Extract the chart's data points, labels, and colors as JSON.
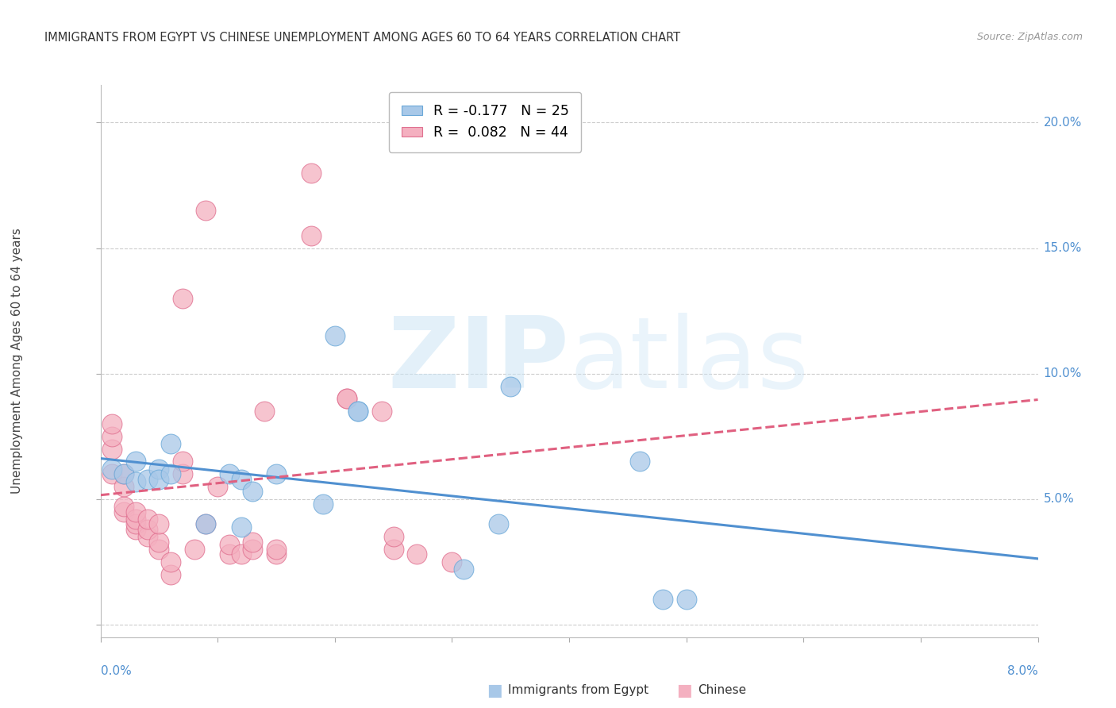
{
  "title": "IMMIGRANTS FROM EGYPT VS CHINESE UNEMPLOYMENT AMONG AGES 60 TO 64 YEARS CORRELATION CHART",
  "source": "Source: ZipAtlas.com",
  "ylabel": "Unemployment Among Ages 60 to 64 years",
  "xlim": [
    0.0,
    0.08
  ],
  "ylim": [
    -0.005,
    0.215
  ],
  "ytick_values": [
    0.0,
    0.05,
    0.1,
    0.15,
    0.2
  ],
  "ytick_labels": [
    "",
    "5.0%",
    "10.0%",
    "15.0%",
    "20.0%"
  ],
  "xtick_values": [
    0.0,
    0.01,
    0.02,
    0.03,
    0.04,
    0.05,
    0.06,
    0.07,
    0.08
  ],
  "blue_scatter_color": "#a8c8e8",
  "blue_edge_color": "#6aa8d8",
  "pink_scatter_color": "#f4b0c0",
  "pink_edge_color": "#e07090",
  "blue_line_color": "#5090d0",
  "pink_line_color": "#e06080",
  "axis_label_color": "#5090d0",
  "title_color": "#333333",
  "source_color": "#999999",
  "grid_color": "#cccccc",
  "legend_r1": "R = -0.177",
  "legend_n1": "N = 25",
  "legend_r2": "R =  0.082",
  "legend_n2": "N = 44",
  "egypt_x": [
    0.001,
    0.002,
    0.003,
    0.003,
    0.004,
    0.005,
    0.005,
    0.006,
    0.006,
    0.009,
    0.011,
    0.012,
    0.012,
    0.013,
    0.015,
    0.019,
    0.02,
    0.022,
    0.022,
    0.031,
    0.034,
    0.035,
    0.046,
    0.048,
    0.05
  ],
  "egypt_y": [
    0.062,
    0.06,
    0.057,
    0.065,
    0.058,
    0.062,
    0.058,
    0.072,
    0.06,
    0.04,
    0.06,
    0.039,
    0.058,
    0.053,
    0.06,
    0.048,
    0.115,
    0.085,
    0.085,
    0.022,
    0.04,
    0.095,
    0.065,
    0.01,
    0.01
  ],
  "chinese_x": [
    0.001,
    0.001,
    0.001,
    0.001,
    0.002,
    0.002,
    0.002,
    0.002,
    0.003,
    0.003,
    0.003,
    0.003,
    0.004,
    0.004,
    0.004,
    0.005,
    0.005,
    0.005,
    0.006,
    0.006,
    0.007,
    0.007,
    0.007,
    0.008,
    0.009,
    0.009,
    0.01,
    0.011,
    0.011,
    0.012,
    0.013,
    0.013,
    0.014,
    0.015,
    0.015,
    0.018,
    0.018,
    0.021,
    0.021,
    0.024,
    0.025,
    0.025,
    0.027,
    0.03
  ],
  "chinese_y": [
    0.06,
    0.07,
    0.075,
    0.08,
    0.045,
    0.047,
    0.055,
    0.06,
    0.038,
    0.04,
    0.042,
    0.045,
    0.035,
    0.038,
    0.042,
    0.03,
    0.033,
    0.04,
    0.02,
    0.025,
    0.06,
    0.065,
    0.13,
    0.03,
    0.04,
    0.165,
    0.055,
    0.028,
    0.032,
    0.028,
    0.03,
    0.033,
    0.085,
    0.028,
    0.03,
    0.18,
    0.155,
    0.09,
    0.09,
    0.085,
    0.03,
    0.035,
    0.028,
    0.025
  ]
}
